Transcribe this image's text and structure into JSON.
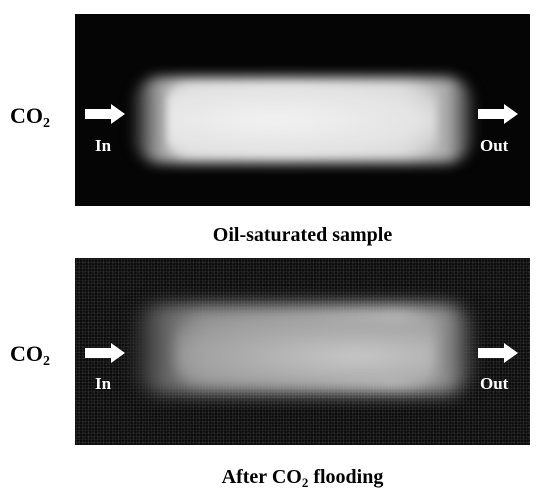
{
  "panels": [
    {
      "inlet_label": "In",
      "outlet_label": "Out",
      "caption": "Oil-saturated sample"
    },
    {
      "inlet_label": "In",
      "outlet_label": "Out",
      "caption_prefix": "After CO",
      "caption_sub": "2",
      "caption_suffix": " flooding"
    }
  ],
  "injection_label": {
    "main": "CO",
    "sub": "2"
  },
  "icons": [
    "arrow-right-icon"
  ],
  "colors": {
    "panel_background": "#050505",
    "sample_bright": "#e2e2e2",
    "sample_after_flooding": "#a2a2a2"
  }
}
